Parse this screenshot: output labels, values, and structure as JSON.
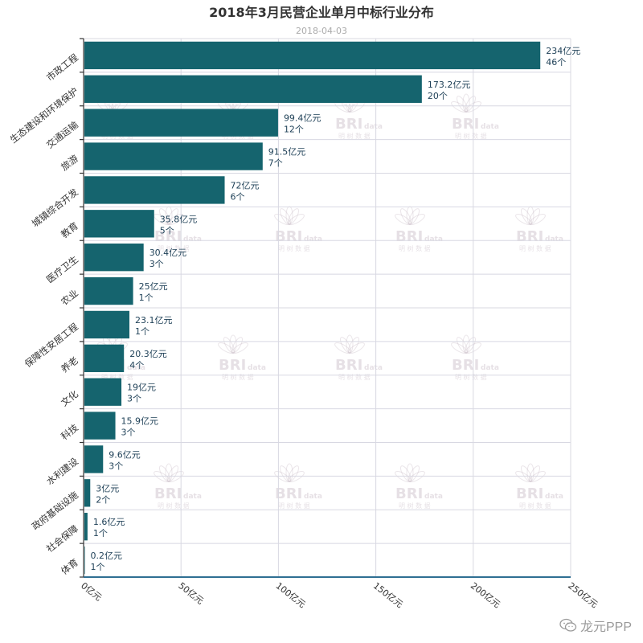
{
  "chart_data": {
    "type": "bar",
    "orientation": "horizontal",
    "title": "2018年3月民营企业单月中标行业分布",
    "subtitle": "2018-04-03",
    "categories": [
      "市政工程",
      "生态建设和环境保护",
      "交通运输",
      "旅游",
      "城镇综合开发",
      "教育",
      "医疗卫生",
      "农业",
      "保障性安居工程",
      "养老",
      "文化",
      "科技",
      "水利建设",
      "政府基础设施",
      "社会保障",
      "体育"
    ],
    "values": [
      234,
      173.2,
      99.4,
      91.5,
      72,
      35.8,
      30.4,
      25,
      23.1,
      20.3,
      19,
      15.9,
      9.6,
      3,
      1.6,
      0.2
    ],
    "value_labels": [
      "234亿元",
      "173.2亿元",
      "99.4亿元",
      "91.5亿元",
      "72亿元",
      "35.8亿元",
      "30.4亿元",
      "25亿元",
      "23.1亿元",
      "20.3亿元",
      "19亿元",
      "15.9亿元",
      "9.6亿元",
      "3亿元",
      "1.6亿元",
      "0.2亿元"
    ],
    "counts": [
      46,
      20,
      12,
      7,
      6,
      5,
      3,
      1,
      1,
      4,
      3,
      3,
      3,
      2,
      1,
      1
    ],
    "count_labels": [
      "46个",
      "20个",
      "12个",
      "7个",
      "6个",
      "5个",
      "3个",
      "1个",
      "1个",
      "4个",
      "3个",
      "3个",
      "3个",
      "2个",
      "1个",
      "1个"
    ],
    "xlim": [
      0,
      250
    ],
    "x_ticks": [
      0,
      50,
      100,
      150,
      200,
      250
    ],
    "x_tick_labels": [
      "0亿元",
      "50亿元",
      "100亿元",
      "150亿元",
      "200亿元",
      "250亿元"
    ],
    "xlabel": "",
    "ylabel": "",
    "grid": true,
    "bar_color": "#15646e"
  },
  "watermark": {
    "brand": "BRI",
    "brand_suffix": "data",
    "sub": "明 树 数 据"
  },
  "footer": {
    "brand": "龙元PPP",
    "icon": "wechat-icon"
  }
}
